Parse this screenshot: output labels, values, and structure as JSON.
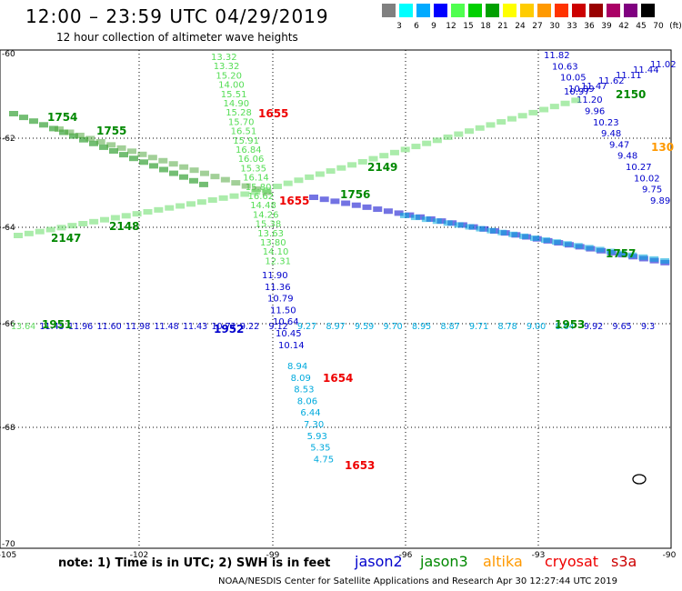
{
  "header": {
    "title": "12:00 – 23:59 UTC 04/29/2019",
    "subtitle": "12 hour collection of altimeter wave heights"
  },
  "scale": {
    "labels": [
      "3",
      "6",
      "9",
      "12",
      "15",
      "18",
      "21",
      "24",
      "27",
      "30",
      "33",
      "36",
      "39",
      "42",
      "45",
      "70",
      "(ft)"
    ],
    "colors": [
      "#808080",
      "#00ffff",
      "#00aaff",
      "#0000ff",
      "#50ff50",
      "#00d000",
      "#00a000",
      "#ffff00",
      "#ffcc00",
      "#ff9900",
      "#ff3300",
      "#cc0000",
      "#990000",
      "#aa0066",
      "#800080",
      "#000000"
    ]
  },
  "axes": {
    "lon_labels": [
      "-105",
      "-102",
      "-99",
      "-96",
      "-93",
      "-90"
    ],
    "lat_labels": [
      "-60",
      "-62",
      "-64",
      "-66",
      "-68",
      "-70"
    ]
  },
  "colors": {
    "jason2": "#0000cc",
    "jason3": "#008800",
    "jason3_light": "#66dd66",
    "altika": "#ff9900",
    "cryosat": "#ee0000",
    "s3a": "#cc0000",
    "cyan": "#00aadd"
  },
  "tracks": [
    {
      "color": "#55dd55",
      "vals": [
        "13.32",
        "13.32",
        "15.20",
        "14.00",
        "15.51",
        "14.90",
        "15.28",
        "15.70",
        "16.51",
        "15.91",
        "16.84",
        "16.06",
        "15.35",
        "16.14",
        "15.80",
        "16.62",
        "14.48",
        "14.26",
        "15.38",
        "13.63",
        "13.80",
        "14.10",
        "12.31"
      ]
    },
    {
      "color": "#0000cc",
      "vals": [
        "11.90",
        "11.36",
        "10.79",
        "11.50",
        "10.64",
        "10.45",
        "10.14"
      ]
    },
    {
      "color": "#00aadd",
      "vals": [
        "8.94",
        "8.09",
        "8.53",
        "8.06",
        "6.44",
        "7.30",
        "5.93",
        "5.35",
        "4.75"
      ]
    },
    {
      "color": "#0000cc",
      "vals": [
        "11.82",
        "10.63",
        "10.05",
        "10.09",
        "11.20",
        "9.96",
        "10.23",
        "9.48",
        "9.47",
        "9.48",
        "10.27",
        "10.02",
        "9.75",
        "9.89"
      ]
    },
    {
      "color": "#0000cc",
      "vals": [
        "10.97",
        "11.47",
        "11.62",
        "11.11",
        "11.44",
        "11.02"
      ]
    }
  ],
  "times": [
    {
      "label": "1754",
      "color": "#008800"
    },
    {
      "label": "1755",
      "color": "#008800"
    },
    {
      "label": "1655",
      "color": "#ee0000"
    },
    {
      "label": "2149",
      "color": "#008800"
    },
    {
      "label": "1756",
      "color": "#008800"
    },
    {
      "label": "1655",
      "color": "#ee0000"
    },
    {
      "label": "2148",
      "color": "#008800"
    },
    {
      "label": "2147",
      "color": "#008800"
    },
    {
      "label": "2150",
      "color": "#008800"
    },
    {
      "label": "130",
      "color": "#ff9900"
    },
    {
      "label": "1757",
      "color": "#008800"
    },
    {
      "label": "1951",
      "color": "#008800"
    },
    {
      "label": "1952",
      "color": "#0000cc"
    },
    {
      "label": "1953",
      "color": "#008800"
    },
    {
      "label": "1654",
      "color": "#ee0000"
    },
    {
      "label": "1653",
      "color": "#ee0000"
    }
  ],
  "row66_vals": [
    "13.64",
    "11.45",
    "11.96",
    "11.60",
    "11.98",
    "11.48",
    "11.43",
    "10.72",
    "9.22",
    "9.12",
    "9.27",
    "8.97",
    "9.59",
    "9.70",
    "8.95",
    "8.87",
    "9.71",
    "8.78",
    "9.00",
    "8.64",
    "9.92",
    "9.65",
    "9.3"
  ],
  "footer": {
    "note": "note: 1) Time is in UTC; 2) SWH is in feet",
    "sats": [
      {
        "name": "jason2",
        "color": "#0000cc"
      },
      {
        "name": "jason3",
        "color": "#008800"
      },
      {
        "name": "altika",
        "color": "#ff9900"
      },
      {
        "name": "cryosat",
        "color": "#ee0000"
      },
      {
        "name": "s3a",
        "color": "#cc0000"
      }
    ],
    "credit": "NOAA/NESDIS Center for Satellite Applications and Research     Apr 30 12:27:44 UTC 2019"
  }
}
